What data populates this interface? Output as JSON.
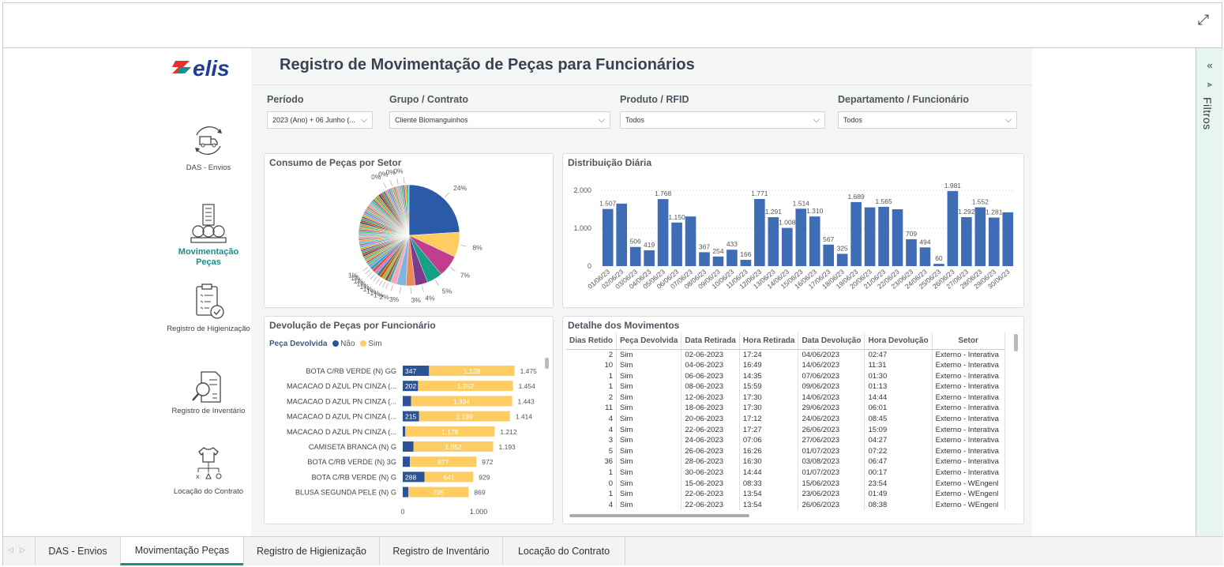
{
  "report": {
    "title": "Registro de Movimentação de Peças para Funcionários"
  },
  "nav": [
    {
      "label": "DAS - Envios",
      "icon": "truck-cycle-icon",
      "active": false
    },
    {
      "label": "Movimentação Peças",
      "icon": "buildings-network-icon",
      "active": true
    },
    {
      "label": "Registro de Higienização",
      "icon": "clipboard-check-icon",
      "active": false
    },
    {
      "label": "Registro de Inventário",
      "icon": "document-search-icon",
      "active": false
    },
    {
      "label": "Locação do Contrato",
      "icon": "shirt-hierarchy-icon",
      "active": false
    }
  ],
  "brand": {
    "logo_text": "elis",
    "logo_color": "#1c3f94",
    "accent": "#e4322b",
    "teal": "#1a8f86"
  },
  "filters": [
    {
      "label": "Período",
      "value": "2023 (Ano) + 06 Junho (..."
    },
    {
      "label": "Grupo / Contrato",
      "value": "Cliente Biomanguinhos"
    },
    {
      "label": "Produto / RFID",
      "value": "Todos"
    },
    {
      "label": "Departamento / Funcionário",
      "value": "Todos"
    }
  ],
  "panels": {
    "pie_title": "Consumo de Peças por Setor",
    "daily_title": "Distribuição Diária",
    "return_title": "Devolução de Peças por Funcionário",
    "detail_title": "Detalhe dos Movimentos"
  },
  "pie_chart": {
    "type": "pie",
    "labels": [
      "24%",
      "8%",
      "7%",
      "5%",
      "4%",
      "3%",
      "3%",
      "2%",
      "1%",
      "1%",
      "1%",
      "1%",
      "1%",
      "1%",
      "1%",
      "1%",
      "1%",
      "0%",
      "0%",
      "0%",
      "0%"
    ]
  },
  "chart_data": {
    "type": "bar",
    "title": "Distribuição Diária",
    "categories": [
      "01/06/23",
      "02/06/23",
      "03/06/23",
      "04/06/23",
      "05/06/23",
      "06/06/23",
      "07/06/23",
      "08/06/23",
      "09/06/23",
      "10/06/23",
      "11/06/23",
      "12/06/23",
      "13/06/23",
      "14/06/23",
      "15/06/23",
      "16/06/23",
      "17/06/23",
      "18/06/23",
      "19/06/23",
      "20/06/23",
      "21/06/23",
      "22/06/23",
      "23/06/23",
      "24/06/23",
      "25/06/23",
      "26/06/23",
      "27/06/23",
      "28/06/23",
      "29/06/23",
      "30/06/23"
    ],
    "values": [
      1507,
      1650,
      506,
      419,
      1768,
      1150,
      1310,
      367,
      254,
      433,
      166,
      1771,
      1291,
      1008,
      1514,
      1310,
      567,
      325,
      1689,
      1550,
      1565,
      1500,
      709,
      494,
      60,
      1981,
      1292,
      1552,
      1281,
      1420
    ],
    "labels": [
      "1.507",
      "",
      "506",
      "419",
      "1.768",
      "1.150",
      "",
      "367",
      "254",
      "433",
      "166",
      "1.771",
      "1.291",
      "1.008",
      "1.514",
      "1.310",
      "567",
      "325",
      "1.689",
      "",
      "1.565",
      "",
      "709",
      "494",
      "60",
      "1.981",
      "1.292",
      "1.552",
      "1.281",
      ""
    ],
    "yticks": [
      "0",
      "1.000",
      "2.000"
    ],
    "ylim": [
      0,
      2000
    ],
    "color": "#3e6db5"
  },
  "returns_chart": {
    "type": "stacked-bar",
    "legend_title": "Peça Devolvida",
    "series": [
      {
        "name": "Não",
        "color": "#2d5296"
      },
      {
        "name": "Sim",
        "color": "#fdcd63"
      }
    ],
    "rows": [
      {
        "label": "BOTA C/RB VERDE (N) GG",
        "nao": 347,
        "sim": 1128,
        "nao_label": "347",
        "sim_label": "1.128",
        "total_label": "1.475"
      },
      {
        "label": "MACACAO D AZUL PN CINZA (...",
        "nao": 202,
        "sim": 1252,
        "nao_label": "202",
        "sim_label": "1.252",
        "total_label": "1.454"
      },
      {
        "label": "MACACAO D AZUL PN CINZA (...",
        "nao": 109,
        "sim": 1334,
        "nao_label": "",
        "sim_label": "1.334",
        "total_label": "1.443"
      },
      {
        "label": "MACACAO D AZUL PN CINZA (...",
        "nao": 215,
        "sim": 1199,
        "nao_label": "215",
        "sim_label": "1.199",
        "total_label": "1.414"
      },
      {
        "label": "MACACAO D AZUL PN CINZA (...",
        "nao": 34,
        "sim": 1178,
        "nao_label": "",
        "sim_label": "1.178",
        "total_label": "1.212"
      },
      {
        "label": "CAMISETA BRANCA (N) G",
        "nao": 141,
        "sim": 1052,
        "nao_label": "",
        "sim_label": "1.052",
        "total_label": "1.193"
      },
      {
        "label": "BOTA C/RB VERDE (N) 3G",
        "nao": 95,
        "sim": 877,
        "nao_label": "",
        "sim_label": "877",
        "total_label": "972"
      },
      {
        "label": "BOTA C/RB VERDE (N) G",
        "nao": 288,
        "sim": 641,
        "nao_label": "288",
        "sim_label": "641",
        "total_label": "929"
      },
      {
        "label": "BLUSA SEGUNDA PELE (N) G",
        "nao": 74,
        "sim": 795,
        "nao_label": "",
        "sim_label": "795",
        "total_label": "869"
      }
    ],
    "xticks": [
      "0",
      "1.000"
    ]
  },
  "detail_table": {
    "columns": [
      "Dias Retido",
      "Peça Devolvida",
      "Data Retirada",
      "Hora Retirada",
      "Data Devolução",
      "Hora Devolução",
      "Setor"
    ],
    "rows": [
      [
        "2",
        "Sim",
        "02-06-2023",
        "17:24",
        "04/06/2023",
        "02:47",
        "Externo - Interativa"
      ],
      [
        "10",
        "Sim",
        "04-06-2023",
        "16:49",
        "14/06/2023",
        "11:31",
        "Externo - Interativa"
      ],
      [
        "1",
        "Sim",
        "06-06-2023",
        "14:35",
        "07/06/2023",
        "01:30",
        "Externo - Interativa"
      ],
      [
        "1",
        "Sim",
        "08-06-2023",
        "15:59",
        "09/06/2023",
        "01:13",
        "Externo - Interativa"
      ],
      [
        "2",
        "Sim",
        "12-06-2023",
        "17:30",
        "14/06/2023",
        "14:44",
        "Externo - Interativa"
      ],
      [
        "11",
        "Sim",
        "18-06-2023",
        "17:30",
        "29/06/2023",
        "06:01",
        "Externo - Interativa"
      ],
      [
        "4",
        "Sim",
        "20-06-2023",
        "17:12",
        "24/06/2023",
        "08:45",
        "Externo - Interativa"
      ],
      [
        "4",
        "Sim",
        "22-06-2023",
        "17:27",
        "26/06/2023",
        "15:09",
        "Externo - Interativa"
      ],
      [
        "3",
        "Sim",
        "24-06-2023",
        "07:06",
        "27/06/2023",
        "04:27",
        "Externo - Interativa"
      ],
      [
        "5",
        "Sim",
        "26-06-2023",
        "16:26",
        "01/07/2023",
        "07:22",
        "Externo - Interativa"
      ],
      [
        "36",
        "Sim",
        "28-06-2023",
        "16:30",
        "03/08/2023",
        "06:47",
        "Externo - Interativa"
      ],
      [
        "1",
        "Sim",
        "30-06-2023",
        "14:44",
        "01/07/2023",
        "00:17",
        "Externo - Interativa"
      ],
      [
        "0",
        "Sim",
        "15-06-2023",
        "08:33",
        "15/06/2023",
        "23:54",
        "Externo - WEngenl"
      ],
      [
        "1",
        "Sim",
        "22-06-2023",
        "13:54",
        "23/06/2023",
        "01:49",
        "Externo - WEngenl"
      ],
      [
        "4",
        "Sim",
        "22-06-2023",
        "13:54",
        "26/06/2023",
        "08:38",
        "Externo - WEngenl"
      ]
    ]
  },
  "filtros_label": "Filtros",
  "tabs": [
    {
      "label": "DAS - Envios",
      "active": false
    },
    {
      "label": "Movimentação Peças",
      "active": true
    },
    {
      "label": "Registro de Higienização",
      "active": false
    },
    {
      "label": "Registro de Inventário",
      "active": false
    },
    {
      "label": "Locação do Contrato",
      "active": false
    }
  ]
}
